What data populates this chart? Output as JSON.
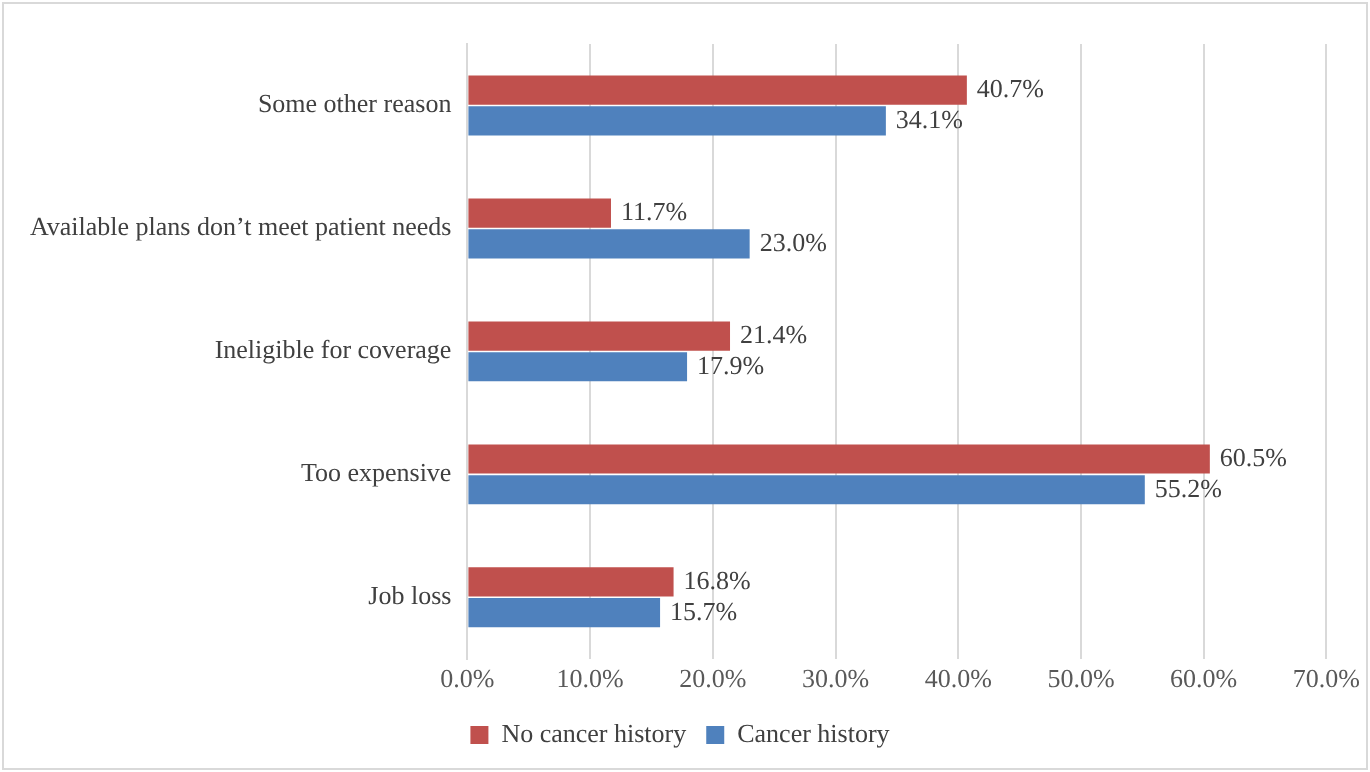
{
  "chart_data": {
    "type": "bar",
    "orientation": "horizontal",
    "categories": [
      "Some other reason",
      "Available plans don’t meet patient needs",
      "Ineligible for coverage",
      "Too expensive",
      "Job loss"
    ],
    "series": [
      {
        "name": "No cancer history",
        "color": "#c0504d",
        "values": [
          40.7,
          11.7,
          21.4,
          60.5,
          16.8
        ],
        "value_labels": [
          "40.7%",
          "11.7%",
          "21.4%",
          "60.5%",
          "16.8%"
        ]
      },
      {
        "name": "Cancer history",
        "color": "#4f81bd",
        "values": [
          34.1,
          23.0,
          17.9,
          55.2,
          15.7
        ],
        "value_labels": [
          "34.1%",
          "23.0%",
          "17.9%",
          "55.2%",
          "15.7%"
        ]
      }
    ],
    "xlim": [
      0,
      70
    ],
    "xticks": [
      {
        "value": 0,
        "label": "0.0%"
      },
      {
        "value": 10,
        "label": "10.0%"
      },
      {
        "value": 20,
        "label": "20.0%"
      },
      {
        "value": 30,
        "label": "30.0%"
      },
      {
        "value": 40,
        "label": "40.0%"
      },
      {
        "value": 50,
        "label": "50.0%"
      },
      {
        "value": 60,
        "label": "60.0%"
      },
      {
        "value": 70,
        "label": "70.0%"
      }
    ],
    "grid": "x",
    "legend": "bottom"
  }
}
